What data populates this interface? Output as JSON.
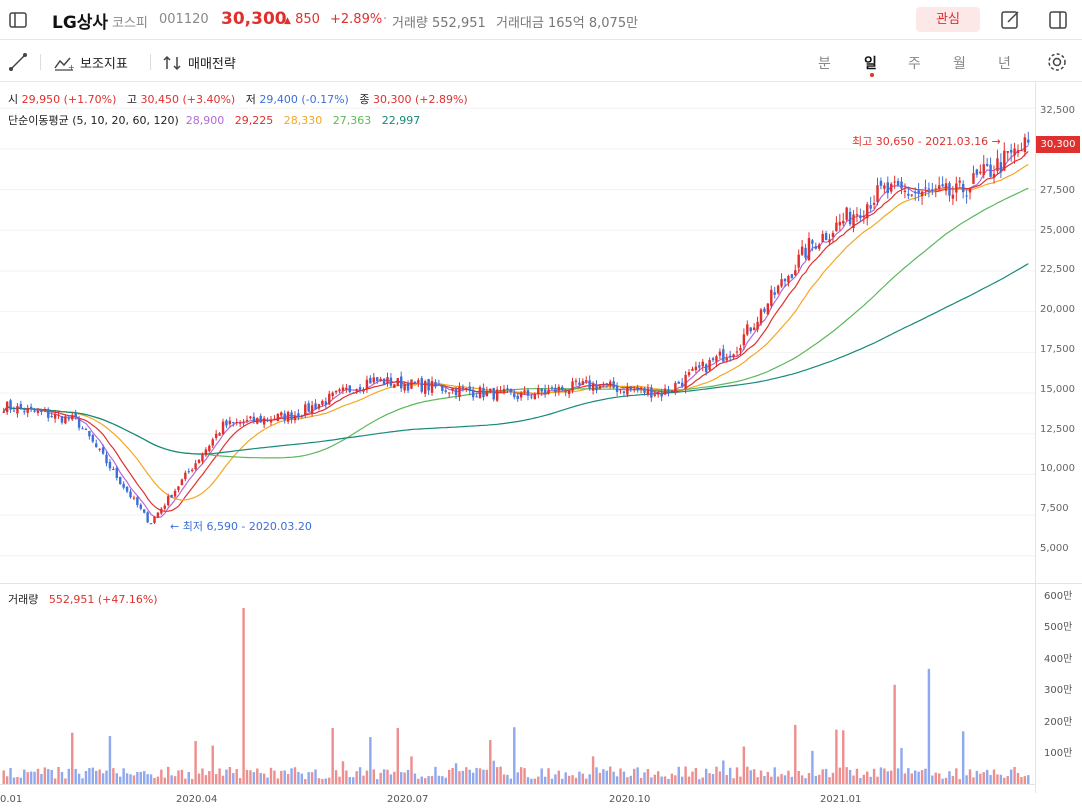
{
  "header": {
    "name": "LG상사",
    "market": "코스피",
    "code": "001120",
    "price": "30,300",
    "change": "850",
    "change_pct": "+2.89%",
    "separator": "·",
    "volume_label": "거래량 552,951",
    "amount_label": "거래대금 165억 8,075만",
    "watch_label": "관심"
  },
  "toolbar": {
    "indicator_label": "보조지표",
    "strategy_label": "매매전략",
    "periods": [
      "분",
      "일",
      "주",
      "월",
      "년"
    ],
    "active_period": "일"
  },
  "ohlc": {
    "open_label": "시",
    "open": "29,950 (+1.70%)",
    "high_label": "고",
    "high": "30,450 (+3.40%)",
    "low_label": "저",
    "low": "29,400 (-0.17%)",
    "close_label": "종",
    "close": "30,300 (+2.89%)"
  },
  "ma": {
    "label": "단순이동평균 (5, 10, 20, 60, 120)",
    "values": [
      "28,900",
      "29,225",
      "28,330",
      "27,363",
      "22,997"
    ],
    "colors": [
      "#b36ad9",
      "#e0302e",
      "#f5a623",
      "#5cb85c",
      "#16897a"
    ]
  },
  "annotations": {
    "high": "최고 30,650 - 2021.03.16 →",
    "low": "← 최저 6,590 - 2020.03.20"
  },
  "current_price_tag": "30,300",
  "price_axis": [
    "32,500",
    "30,000",
    "27,500",
    "25,000",
    "22,500",
    "20,000",
    "17,500",
    "15,000",
    "12,500",
    "10,000",
    "7,500",
    "5,000"
  ],
  "volume": {
    "label": "거래량",
    "value": "552,951 (+47.16%)",
    "axis": [
      "600만",
      "500만",
      "400만",
      "300만",
      "200만",
      "100만"
    ]
  },
  "x_axis": [
    "0.01",
    "2020.04",
    "2020.07",
    "2020.10",
    "2021.01"
  ],
  "colors": {
    "up": "#e0302e",
    "down": "#3d6fd9",
    "vol_up": "#ee8f8f",
    "vol_down": "#8fa9ee"
  },
  "chart_data": {
    "type": "candlestick",
    "x": [
      "2020.01",
      "2020.02",
      "2020.03",
      "2020.04",
      "2020.05",
      "2020.06",
      "2020.07",
      "2020.08",
      "2020.09",
      "2020.10",
      "2020.11",
      "2020.12",
      "2021.01",
      "2021.02",
      "2021.03"
    ],
    "close_approx": [
      14200,
      13300,
      7000,
      13000,
      13700,
      15800,
      15300,
      14800,
      15500,
      15000,
      17800,
      24000,
      27400,
      27200,
      30300
    ],
    "y_range": [
      4000,
      33500
    ],
    "volume_range_man": [
      0,
      600
    ],
    "high": {
      "value": 30650,
      "date": "2021.03.16"
    },
    "low": {
      "value": 6590,
      "date": "2020.03.20"
    }
  }
}
